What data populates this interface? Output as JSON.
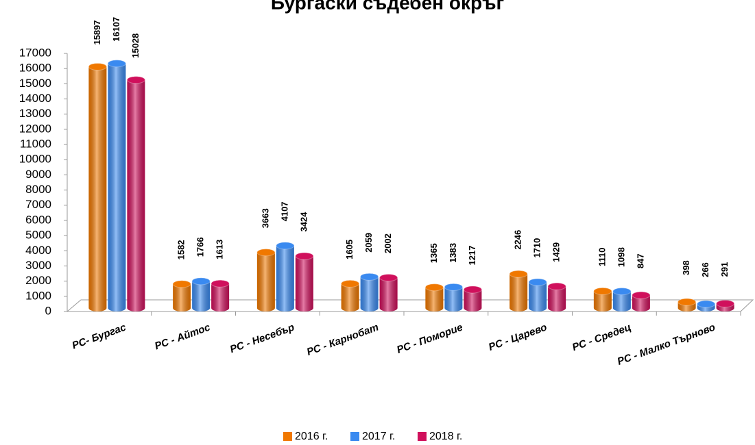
{
  "chart_data": {
    "type": "bar",
    "title": "Бургаски съдебен окръг",
    "categories": [
      "РС- Бургас",
      "РС - Айтос",
      "РС - Несебър",
      "РС - Карнобат",
      "РС - Поморие",
      "РС - Царево",
      "РС - Средец",
      "РС - Малко Търново"
    ],
    "series": [
      {
        "name": "2016 г.",
        "color": "#f07800",
        "values": [
          15897,
          1582,
          3663,
          1605,
          1365,
          2246,
          1110,
          398
        ]
      },
      {
        "name": "2017 г.",
        "color": "#3a8af0",
        "values": [
          16107,
          1766,
          4107,
          2059,
          1383,
          1710,
          1098,
          266
        ]
      },
      {
        "name": "2018 г.",
        "color": "#d0105c",
        "values": [
          15028,
          1613,
          3424,
          2002,
          1217,
          1429,
          847,
          291
        ]
      }
    ],
    "ylim": [
      0,
      17000
    ],
    "yticks": [
      0,
      1000,
      2000,
      3000,
      4000,
      5000,
      6000,
      7000,
      8000,
      9000,
      10000,
      11000,
      12000,
      13000,
      14000,
      15000,
      16000,
      17000
    ],
    "legend": "bottom"
  }
}
